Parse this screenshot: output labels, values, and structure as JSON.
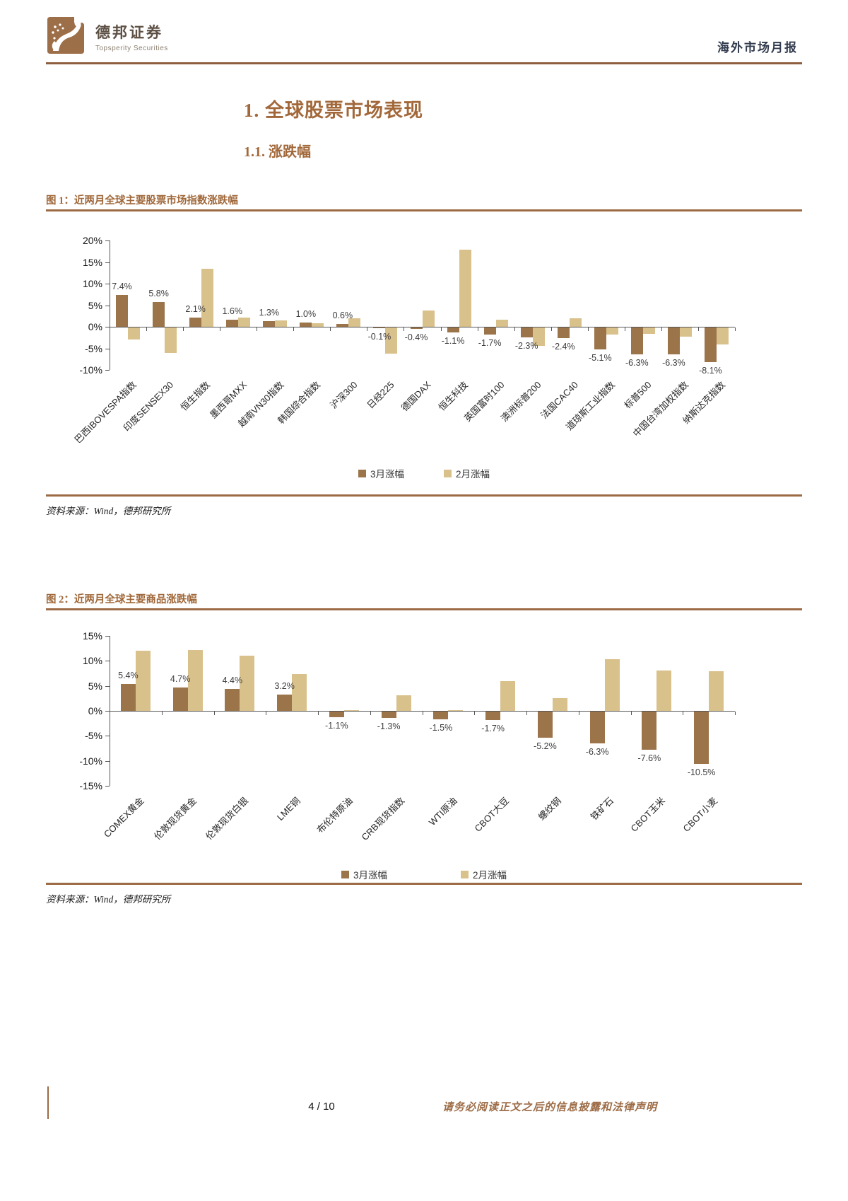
{
  "header": {
    "brand_cn": "德邦证券",
    "brand_en": "Topsperity Securities",
    "report_type": "海外市场月报"
  },
  "section": {
    "h1": "1. 全球股票市场表现",
    "h2": "1.1. 涨跌幅"
  },
  "footer": {
    "page": "4 / 10",
    "disclaimer": "请务必阅读正文之后的信息披露和法律声明"
  },
  "colors": {
    "march_bar": "#9c744a",
    "feb_bar": "#d9c18c",
    "accent_brown": "#9c6b45",
    "heading_brown": "#a2683a"
  },
  "chart_data": [
    {
      "type": "bar",
      "title": "图 1：近两月全球主要股票市场指数涨跌幅",
      "source": "资料来源：Wind，德邦研究所",
      "categories": [
        "巴西IBOVESPA指数",
        "印度SENSEX30",
        "恒生指数",
        "墨西哥MXX",
        "越南VN30指数",
        "韩国综合指数",
        "沪深300",
        "日经225",
        "德国DAX",
        "恒生科技",
        "英国富时100",
        "澳洲标普200",
        "法国CAC40",
        "道琼斯工业指数",
        "标普500",
        "中国台湾加权指数",
        "纳斯达克指数"
      ],
      "series": [
        {
          "name": "3月涨幅",
          "color": "#9c744a",
          "values": [
            7.4,
            5.8,
            2.1,
            1.6,
            1.3,
            1.0,
            0.6,
            -0.1,
            -0.4,
            -1.1,
            -1.7,
            -2.3,
            -2.4,
            -5.1,
            -6.3,
            -6.3,
            -8.1
          ],
          "labels": [
            "7.4%",
            "5.8%",
            "2.1%",
            "1.6%",
            "1.3%",
            "1.0%",
            "0.6%",
            "-0.1%",
            "-0.4%",
            "-1.1%",
            "-1.7%",
            "-2.3%",
            "-2.4%",
            "-5.1%",
            "-6.3%",
            "-6.3%",
            "-8.1%"
          ]
        },
        {
          "name": "2月涨幅",
          "color": "#d9c18c",
          "values": [
            -2.8,
            -5.9,
            13.4,
            2.1,
            1.4,
            0.8,
            1.9,
            -6.1,
            3.8,
            17.9,
            1.6,
            -4.2,
            2.0,
            -1.6,
            -1.4,
            -2.1,
            -4.0
          ]
        }
      ],
      "ylim": [
        -10,
        20
      ],
      "ytick_step": 5,
      "ytick_labels": [
        "20%",
        "15%",
        "10%",
        "5%",
        "0%",
        "-5%",
        "-10%"
      ],
      "grid": false,
      "legend_position": "bottom"
    },
    {
      "type": "bar",
      "title": "图 2：近两月全球主要商品涨跌幅",
      "source": "资料来源：Wind，德邦研究所",
      "categories": [
        "COMEX黄金",
        "伦敦现货黄金",
        "伦敦现货白银",
        "LME铜",
        "布伦特原油",
        "CRB现货指数",
        "WTI原油",
        "CBOT大豆",
        "螺纹钢",
        "铁矿石",
        "CBOT玉米",
        "CBOT小麦"
      ],
      "series": [
        {
          "name": "3月涨幅",
          "color": "#9c744a",
          "values": [
            5.4,
            4.7,
            4.4,
            3.2,
            -1.1,
            -1.3,
            -1.5,
            -1.7,
            -5.2,
            -6.3,
            -7.6,
            -10.5
          ],
          "labels": [
            "5.4%",
            "4.7%",
            "4.4%",
            "3.2%",
            "-1.1%",
            "-1.3%",
            "-1.5%",
            "-1.7%",
            "-5.2%",
            "-6.3%",
            "-7.6%",
            "-10.5%"
          ]
        },
        {
          "name": "2月涨幅",
          "color": "#d9c18c",
          "values": [
            12.0,
            12.2,
            11.0,
            7.4,
            0.2,
            3.1,
            0.2,
            6.0,
            2.5,
            10.4,
            8.0,
            7.9
          ]
        }
      ],
      "ylim": [
        -15,
        15
      ],
      "ytick_step": 5,
      "ytick_labels": [
        "15%",
        "10%",
        "5%",
        "0%",
        "-5%",
        "-10%",
        "-15%"
      ],
      "grid": false,
      "legend_position": "bottom"
    }
  ]
}
